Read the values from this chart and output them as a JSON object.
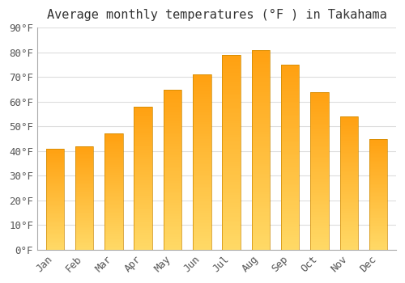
{
  "title": "Average monthly temperatures (°F ) in Takahama",
  "months": [
    "Jan",
    "Feb",
    "Mar",
    "Apr",
    "May",
    "Jun",
    "Jul",
    "Aug",
    "Sep",
    "Oct",
    "Nov",
    "Dec"
  ],
  "values": [
    41,
    42,
    47,
    58,
    65,
    71,
    79,
    81,
    75,
    64,
    54,
    45
  ],
  "ylim": [
    0,
    90
  ],
  "yticks": [
    0,
    10,
    20,
    30,
    40,
    50,
    60,
    70,
    80,
    90
  ],
  "ytick_labels": [
    "0°F",
    "10°F",
    "20°F",
    "30°F",
    "40°F",
    "50°F",
    "60°F",
    "70°F",
    "80°F",
    "90°F"
  ],
  "background_color": "#ffffff",
  "grid_color": "#dddddd",
  "title_fontsize": 11,
  "tick_fontsize": 9,
  "bar_color_bottom": "#FFD966",
  "bar_color_top": "#FFA010",
  "bar_border_color": "#CC8800"
}
